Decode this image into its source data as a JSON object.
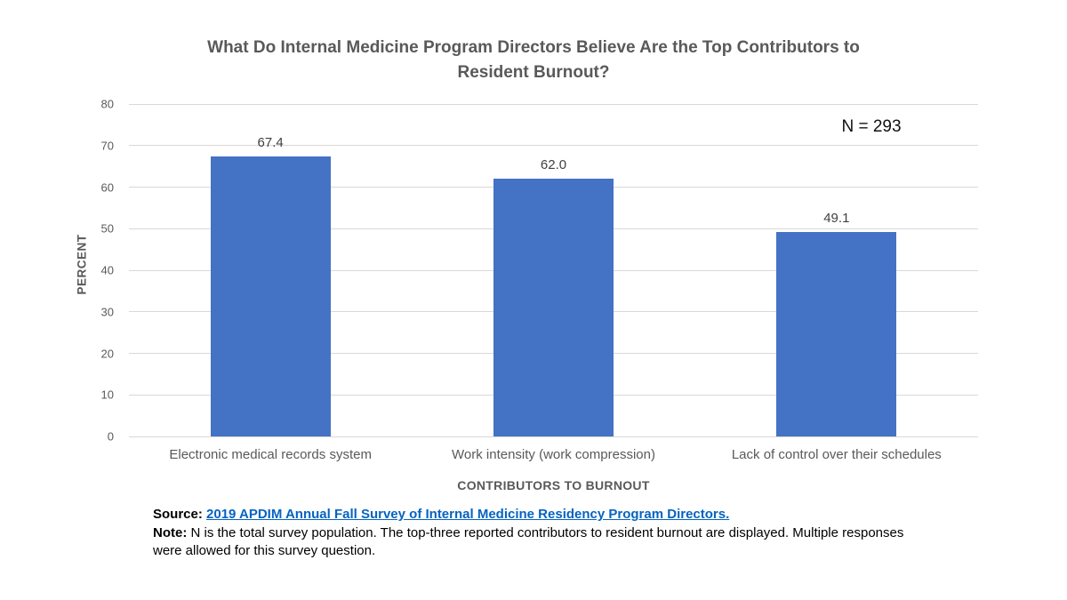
{
  "title": "What Do Internal Medicine Program Directors Believe Are the Top Contributors to Resident Burnout?",
  "annotation": "N = 293",
  "chart_data": {
    "type": "bar",
    "title": "What Do Internal Medicine Program Directors Believe Are the Top Contributors to Resident Burnout?",
    "categories": [
      "Electronic medical records system",
      "Work intensity (work compression)",
      "Lack of control over their schedules"
    ],
    "values": [
      67.4,
      62.0,
      49.1
    ],
    "value_labels": [
      "67.4",
      "62.0",
      "49.1"
    ],
    "xlabel": "CONTRIBUTORS TO BURNOUT",
    "ylabel": "PERCENT",
    "ylim": [
      0,
      80
    ],
    "ytick_step": 10,
    "grid": true,
    "legend": "none",
    "bar_color": "#4472c4",
    "gridline_color": "#d9d9d9",
    "annotation": "N = 293"
  },
  "footer": {
    "source_label": "Source:",
    "source_link": "2019 APDIM Annual Fall Survey of Internal Medicine Residency Program Directors.",
    "note_label": "Note:",
    "note_text": "N is the total survey population. The top-three reported contributors to resident burnout are displayed. Multiple responses were allowed for this survey question."
  }
}
